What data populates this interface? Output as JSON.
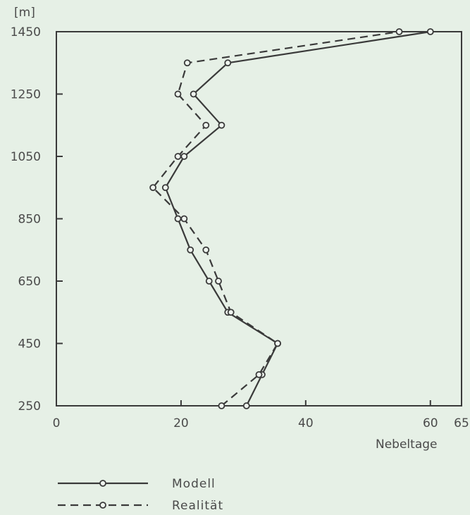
{
  "chart_data": {
    "type": "line",
    "xlabel": "Nebeltage",
    "ylabel": "[m]",
    "xlim": [
      0,
      65
    ],
    "ylim": [
      250,
      1450
    ],
    "xticks": [
      0,
      20,
      40,
      60,
      65
    ],
    "xtick_labels": [
      "0",
      "20",
      "40",
      "60",
      "65"
    ],
    "yticks": [
      250,
      450,
      650,
      850,
      1050,
      1250,
      1450
    ],
    "ytick_labels": [
      "250",
      "450",
      "650",
      "850",
      "1050",
      "1250",
      "1450"
    ],
    "grid": false,
    "legend_position": "bottom-left",
    "series": [
      {
        "name": "Modell",
        "style": "solid",
        "color": "#3a3a3a",
        "points": [
          {
            "x": 30.5,
            "y": 250
          },
          {
            "x": 33,
            "y": 350
          },
          {
            "x": 35.5,
            "y": 450
          },
          {
            "x": 27.5,
            "y": 550
          },
          {
            "x": 24.5,
            "y": 650
          },
          {
            "x": 21.5,
            "y": 750
          },
          {
            "x": 19.5,
            "y": 850
          },
          {
            "x": 17.5,
            "y": 950
          },
          {
            "x": 20.5,
            "y": 1050
          },
          {
            "x": 26.5,
            "y": 1150
          },
          {
            "x": 22,
            "y": 1250
          },
          {
            "x": 27.5,
            "y": 1350
          },
          {
            "x": 60,
            "y": 1450
          }
        ]
      },
      {
        "name": "Realität",
        "style": "dashed",
        "color": "#3a3a3a",
        "points": [
          {
            "x": 26.5,
            "y": 250
          },
          {
            "x": 32.5,
            "y": 350
          },
          {
            "x": 35.5,
            "y": 450
          },
          {
            "x": 28,
            "y": 550
          },
          {
            "x": 26,
            "y": 650
          },
          {
            "x": 24,
            "y": 750
          },
          {
            "x": 20.5,
            "y": 850
          },
          {
            "x": 15.5,
            "y": 950
          },
          {
            "x": 19.5,
            "y": 1050
          },
          {
            "x": 24,
            "y": 1150
          },
          {
            "x": 19.5,
            "y": 1250
          },
          {
            "x": 21,
            "y": 1350
          },
          {
            "x": 55,
            "y": 1450
          }
        ]
      }
    ]
  }
}
